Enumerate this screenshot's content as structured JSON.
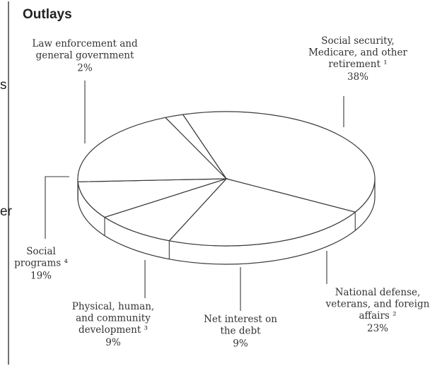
{
  "chart_data": {
    "type": "pie",
    "title": "Outlays",
    "slices": [
      {
        "label_lines": [
          "Social security,",
          "Medicare, and other",
          "retirement ¹"
        ],
        "value": 38,
        "display": "38%"
      },
      {
        "label_lines": [
          "National defense,",
          "veterans, and foreign",
          "affairs ²"
        ],
        "value": 23,
        "display": "23%"
      },
      {
        "label_lines": [
          "Net interest on",
          "the debt"
        ],
        "value": 9,
        "display": "9%"
      },
      {
        "label_lines": [
          "Physical, human,",
          "and community",
          "development ³"
        ],
        "value": 9,
        "display": "9%"
      },
      {
        "label_lines": [
          "Social",
          "programs ⁴"
        ],
        "value": 19,
        "display": "19%"
      },
      {
        "label_lines": [
          "Law enforcement and",
          "general government"
        ],
        "value": 2,
        "display": "2%"
      }
    ],
    "edge_fragments": [
      "s",
      "er"
    ]
  }
}
